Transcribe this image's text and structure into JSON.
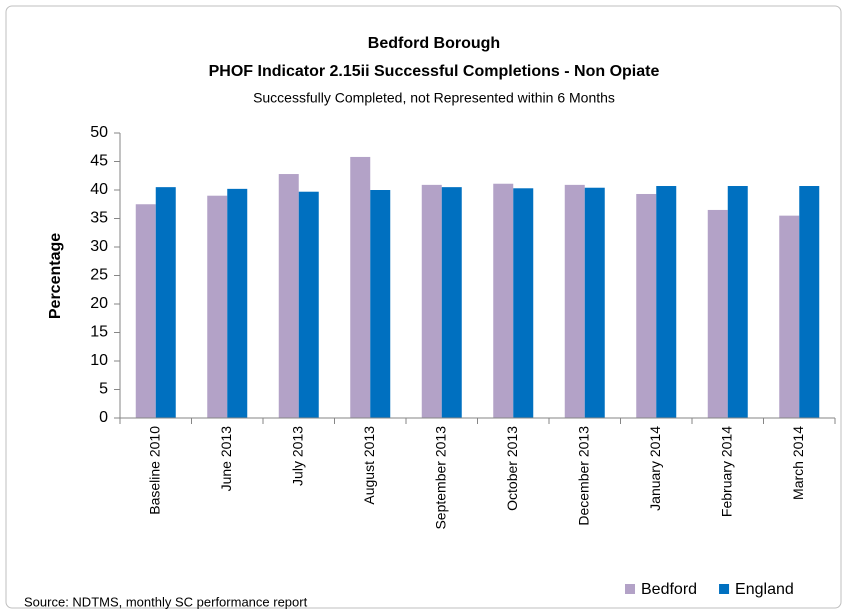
{
  "chart_data": {
    "type": "bar",
    "title": [
      "Bedford Borough",
      "PHOF Indicator 2.15ii Successful Completions - Non Opiate"
    ],
    "subtitle": "Successfully Completed, not Represented within 6 Months",
    "ylabel": "Percentage",
    "source": "Source: NDTMS, monthly SC performance report",
    "categories": [
      "Baseline 2010",
      "June 2013",
      "July 2013",
      "August 2013",
      "September 2013",
      "October 2013",
      "December 2013",
      "January 2014",
      "February 2014",
      "March 2014"
    ],
    "series": [
      {
        "name": "Bedford",
        "color": "#b3a2c7",
        "values": [
          37.5,
          39,
          42.8,
          45.8,
          40.9,
          41.1,
          40.9,
          39.3,
          36.5,
          35.5
        ]
      },
      {
        "name": "England",
        "color": "#0070c0",
        "values": [
          40.5,
          40.2,
          39.7,
          40,
          40.5,
          40.3,
          40.4,
          40.7,
          40.7,
          40.7
        ]
      }
    ],
    "ylim": [
      0,
      50
    ],
    "yticks": [
      0,
      5,
      10,
      15,
      20,
      25,
      30,
      35,
      40,
      45,
      50
    ],
    "grid": false,
    "legend": "bottom-right"
  }
}
